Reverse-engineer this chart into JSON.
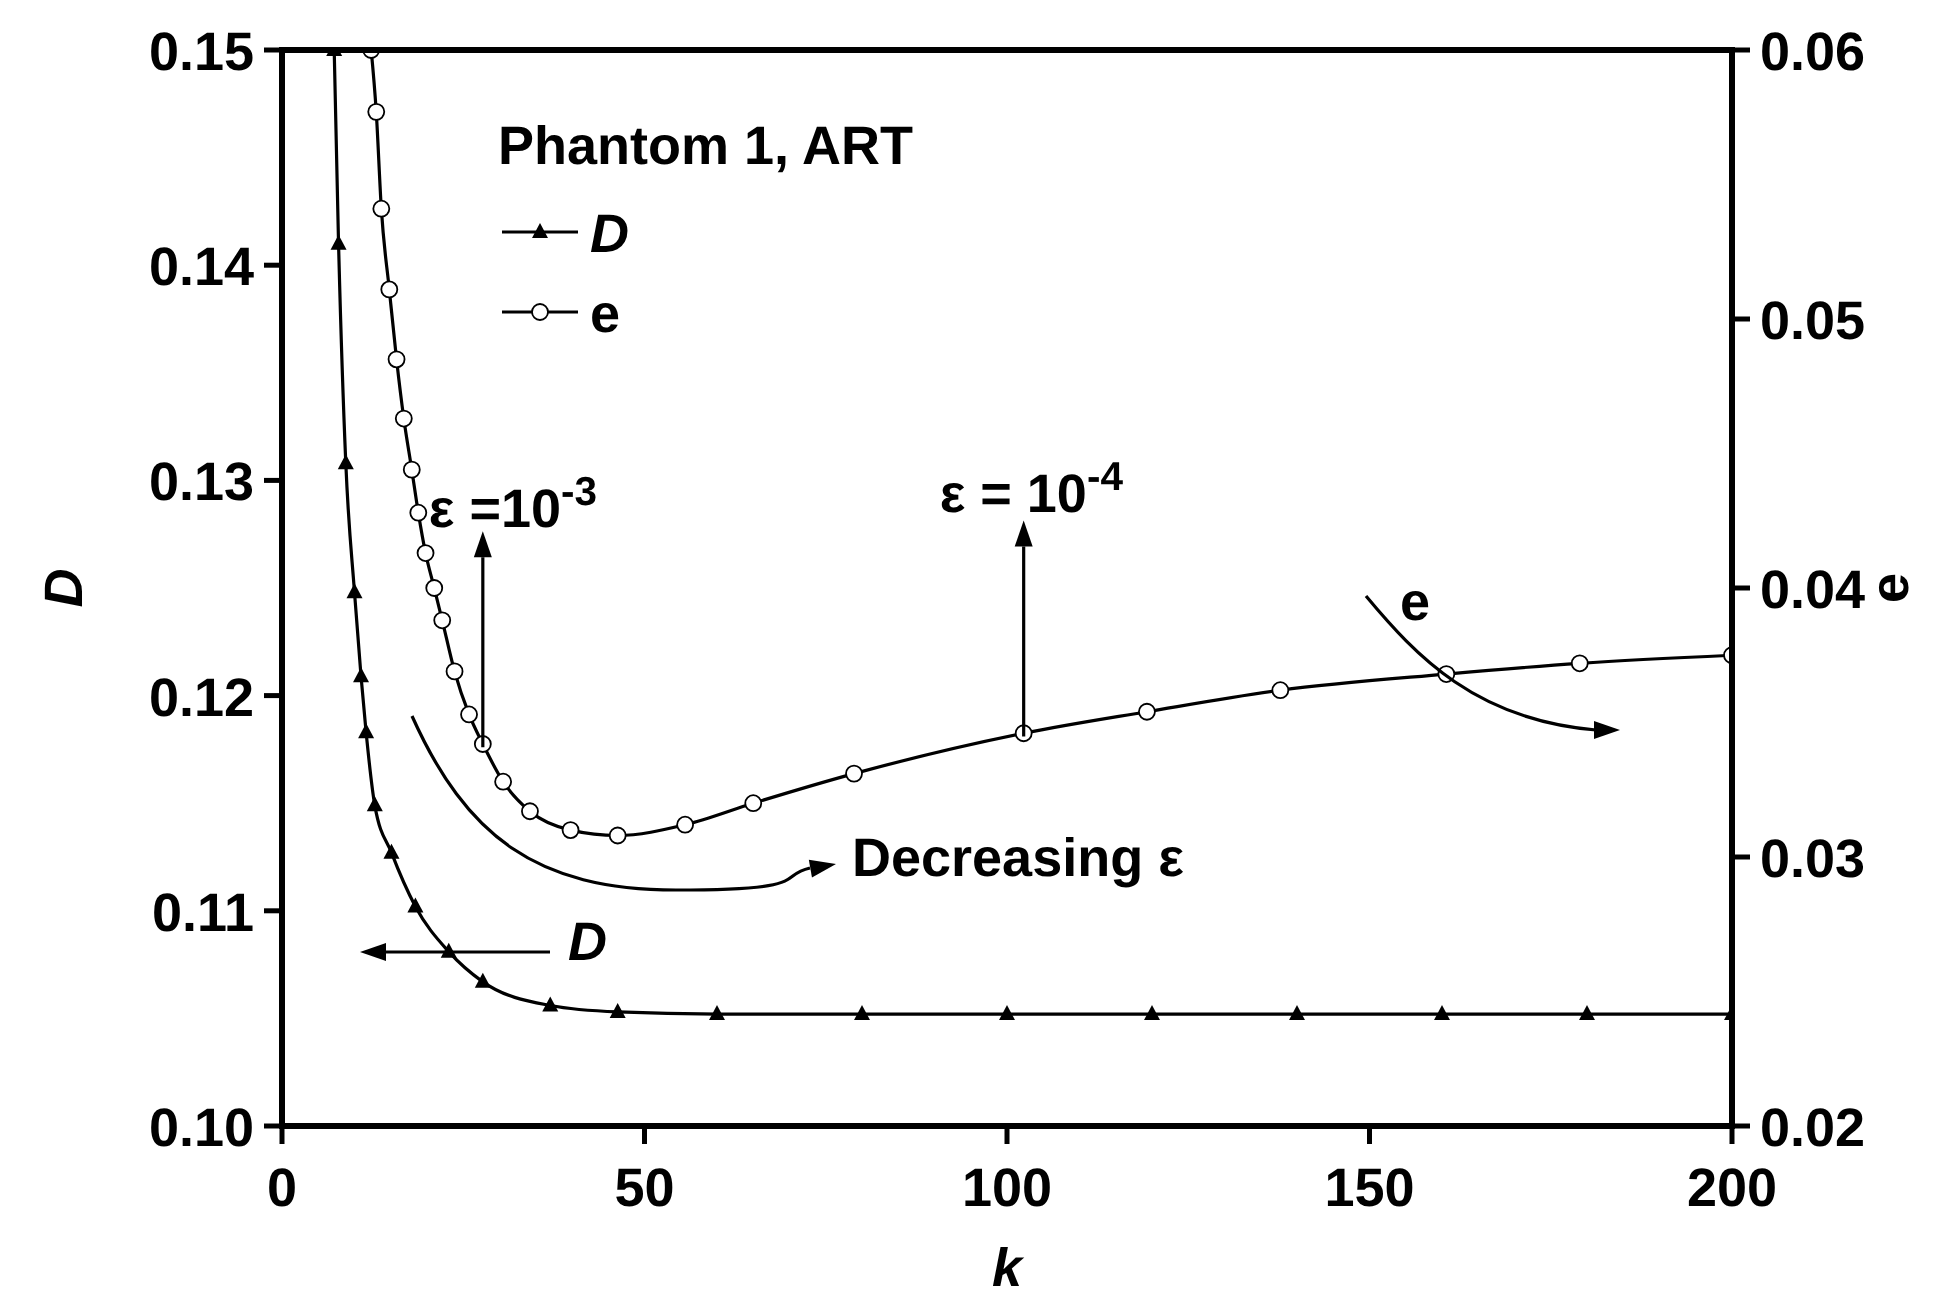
{
  "chart_data": {
    "type": "line",
    "xlabel": "k",
    "ylabel": "D",
    "y2label": "e",
    "legend_title": "Phantom 1, ART",
    "legend": "top left",
    "grid": false,
    "xlim": [
      0,
      200
    ],
    "xticks": [
      0,
      50,
      100,
      150,
      200
    ],
    "ylim": [
      0.1,
      0.15
    ],
    "yticks": [
      {
        "value": 0.1,
        "label": "0.10"
      },
      0.11,
      0.12,
      0.13,
      0.14,
      0.15
    ],
    "y2lim": [
      0.02,
      0.06
    ],
    "y2ticks": [
      {
        "value": 0.02,
        "label": "0.02"
      },
      0.03,
      0.04,
      0.05,
      0.06
    ],
    "series": [
      {
        "name": "D",
        "color": "#000000",
        "marker": "triangle",
        "x": [
          7.2,
          7.8,
          8.8,
          10.0,
          10.9,
          11.6,
          12.8,
          15.1,
          18.4,
          23.0,
          27.7,
          37.0,
          46.3,
          60,
          80,
          100,
          120,
          140,
          160,
          180,
          200
        ],
        "values": [
          0.15,
          0.141,
          0.1308,
          0.1248,
          0.1209,
          0.1183,
          0.1149,
          0.1127,
          0.1102,
          0.1081,
          0.1067,
          0.1056,
          0.1053,
          0.1052,
          0.1052,
          0.1052,
          0.1052,
          0.1052,
          0.1052,
          0.1052,
          0.1052
        ]
      },
      {
        "name": "e",
        "color": "#000000",
        "marker": "circle",
        "axis": "y2",
        "x": [
          12.3,
          13.0,
          13.7,
          14.8,
          15.8,
          16.8,
          17.9,
          18.8,
          19.8,
          21.0,
          22.1,
          23.8,
          25.8,
          27.7,
          30.5,
          34.2,
          39.8,
          46.3,
          55.6,
          65.0,
          78.9,
          102.3,
          119.3,
          137.7,
          160.6,
          179.0,
          200
        ],
        "values": [
          0.06,
          0.0577,
          0.0541,
          0.0511,
          0.0485,
          0.0463,
          0.0444,
          0.0428,
          0.0413,
          0.04,
          0.0388,
          0.0369,
          0.0353,
          0.0342,
          0.0328,
          0.0317,
          0.031,
          0.0308,
          0.0312,
          0.032,
          0.0331,
          0.0346,
          0.0354,
          0.0362,
          0.0368,
          0.0372,
          0.0375
        ]
      }
    ],
    "annotations": [
      {
        "text": "ε =10$^{-3}$",
        "x": 27.7,
        "y": 0.1176
      },
      {
        "text": "ε = 10$^{-4}$",
        "x": 102.3,
        "y": 0.1181
      },
      "Decreasing ε",
      "e",
      "D"
    ]
  }
}
